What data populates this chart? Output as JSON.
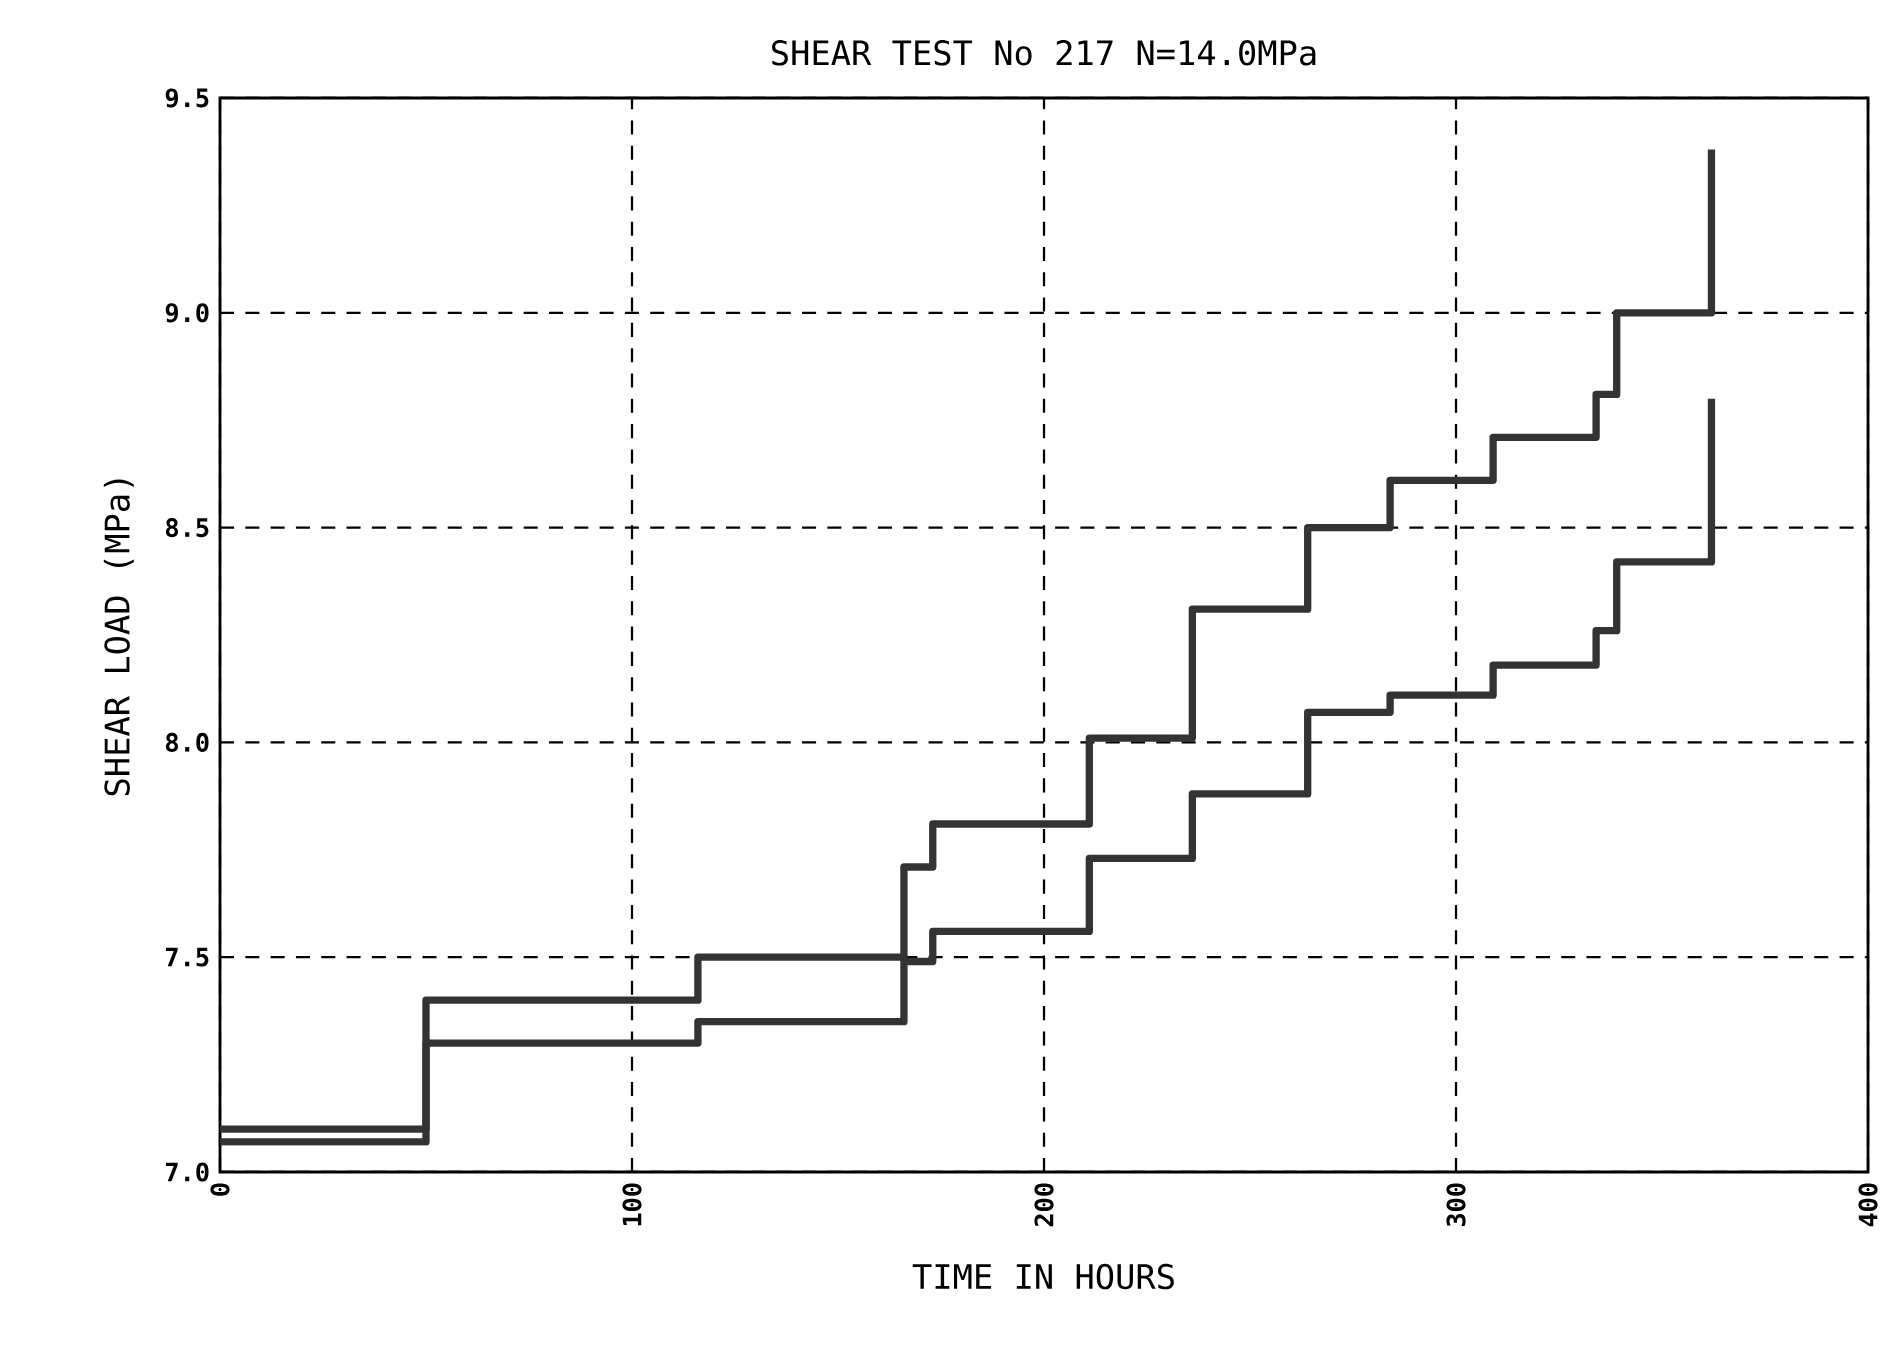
{
  "chart_data": {
    "type": "step",
    "title": "SHEAR TEST No 217 N=14.0MPa",
    "xlabel": "TIME IN HOURS",
    "ylabel": "SHEAR LOAD (MPa)",
    "xlim": [
      0,
      400
    ],
    "ylim": [
      7.0,
      9.5
    ],
    "xticks": [
      {
        "value": 0,
        "label": "0"
      },
      {
        "value": 100,
        "label": "100"
      },
      {
        "value": 200,
        "label": "200"
      },
      {
        "value": 300,
        "label": "300"
      },
      {
        "value": 400,
        "label": "400"
      }
    ],
    "yticks": [
      {
        "value": 7.0,
        "label": "7.0"
      },
      {
        "value": 7.5,
        "label": "7.5"
      },
      {
        "value": 8.0,
        "label": "8.0"
      },
      {
        "value": 8.5,
        "label": "8.5"
      },
      {
        "value": 9.0,
        "label": "9.0"
      },
      {
        "value": 9.5,
        "label": "9.5"
      }
    ],
    "grid": true,
    "line_style": "solid",
    "series": [
      {
        "color": "#333333",
        "x": [
          0,
          50,
          116,
          166,
          173,
          211,
          236,
          264,
          284,
          309,
          334,
          339,
          362,
          362
        ],
        "values": [
          7.1,
          7.4,
          7.5,
          7.71,
          7.81,
          8.01,
          8.31,
          8.5,
          8.61,
          8.71,
          8.81,
          9.0,
          9.0,
          9.38
        ]
      },
      {
        "color": "#333333",
        "x": [
          0,
          50,
          116,
          166,
          173,
          211,
          236,
          264,
          284,
          309,
          334,
          339,
          362,
          362
        ],
        "values": [
          7.07,
          7.3,
          7.35,
          7.49,
          7.56,
          7.73,
          7.88,
          8.07,
          8.11,
          8.18,
          8.26,
          8.42,
          8.42,
          8.8
        ]
      }
    ]
  }
}
